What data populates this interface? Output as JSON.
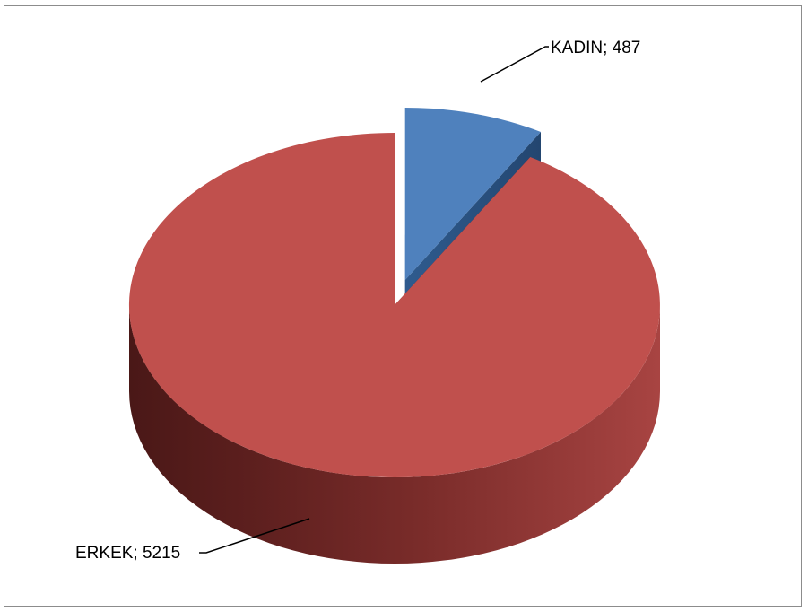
{
  "chart_data": {
    "type": "pie",
    "style": "3d-exploded",
    "title": "",
    "legend": "none",
    "slices": [
      {
        "label": "KADIN",
        "value": 487,
        "display": "KADIN; 487",
        "color": "#4F81BD",
        "exploded": true
      },
      {
        "label": "ERKEK",
        "value": 5215,
        "display": "ERKEK; 5215",
        "color": "#C0504D",
        "exploded": false
      }
    ]
  }
}
